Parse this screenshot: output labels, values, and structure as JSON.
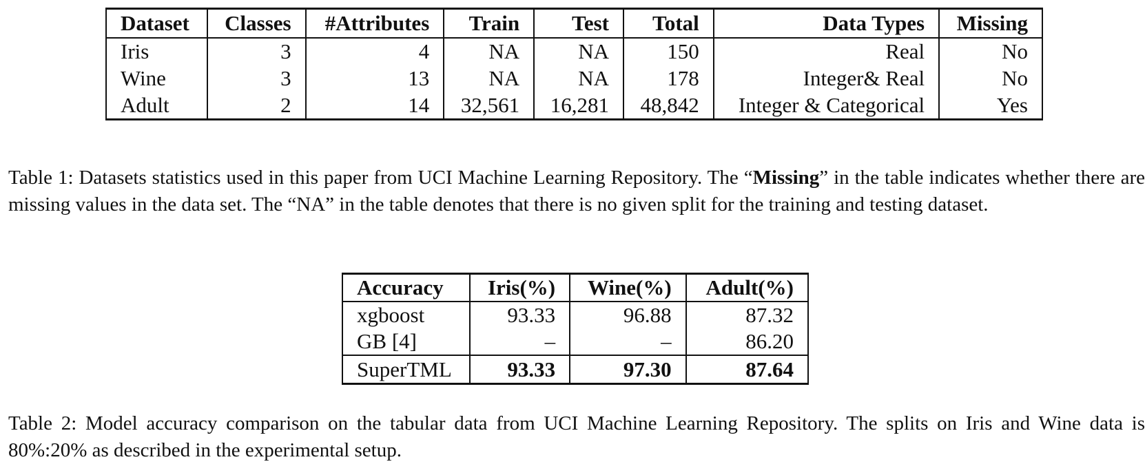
{
  "table1": {
    "columns": [
      "Dataset",
      "Classes",
      "#Attributes",
      "Train",
      "Test",
      "Total",
      "Data Types",
      "Missing"
    ],
    "rows": [
      [
        "Iris",
        "3",
        "4",
        "NA",
        "NA",
        "150",
        "Real",
        "No"
      ],
      [
        "Wine",
        "3",
        "13",
        "NA",
        "NA",
        "178",
        "Integer& Real",
        "No"
      ],
      [
        "Adult",
        "2",
        "14",
        "32,561",
        "16,281",
        "48,842",
        "Integer & Categorical",
        "Yes"
      ]
    ]
  },
  "caption1": {
    "part1": "Table 1: Datasets statistics used in this paper from UCI Machine Learning Repository. The “",
    "bold": "Missing",
    "part2": "” in the table indicates whether there are missing values in the data set. The “NA” in the table denotes that there is no given split for the training and testing dataset."
  },
  "table2": {
    "columns": [
      "Accuracy",
      "Iris(%)",
      "Wine(%)",
      "Adult(%)"
    ],
    "rows": [
      [
        "xgboost",
        "93.33",
        "96.88",
        "87.32"
      ],
      [
        "GB [4]",
        "–",
        "–",
        "86.20"
      ],
      [
        "SuperTML",
        "93.33",
        "97.30",
        "87.64"
      ]
    ]
  },
  "caption2": "Table 2: Model accuracy comparison on the tabular data from UCI Machine Learning Repository. The splits on Iris and Wine data is 80%:20% as described in the experimental setup."
}
